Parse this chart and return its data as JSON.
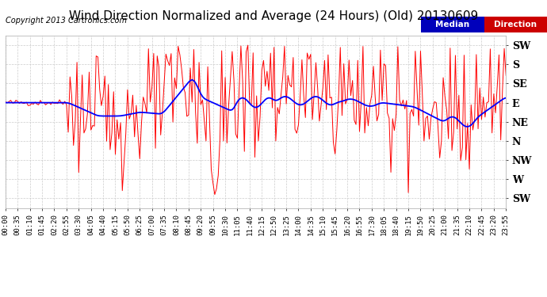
{
  "title": "Wind Direction Normalized and Average (24 Hours) (Old) 20130609",
  "copyright": "Copyright 2013 Cartronics.com",
  "legend_median_label": "Median",
  "legend_direction_label": "Direction",
  "legend_median_bg": "#0000bb",
  "legend_direction_bg": "#cc0000",
  "background_color": "#ffffff",
  "plot_bg_color": "#ffffff",
  "grid_color": "#cccccc",
  "red_line_color": "#ff0000",
  "blue_line_color": "#0000ff",
  "ytick_labels": [
    "SW",
    "S",
    "SE",
    "E",
    "NE",
    "N",
    "NW",
    "W",
    "SW"
  ],
  "y_positions": [
    8,
    7,
    6,
    5,
    4,
    3,
    2,
    1,
    0
  ],
  "ylim": [
    -0.5,
    8.5
  ],
  "xlim": [
    0,
    287
  ],
  "tick_interval_minutes": 35,
  "n_points": 288,
  "title_fontsize": 11,
  "copyright_fontsize": 7,
  "tick_fontsize": 6.5,
  "ytick_fontsize": 9
}
